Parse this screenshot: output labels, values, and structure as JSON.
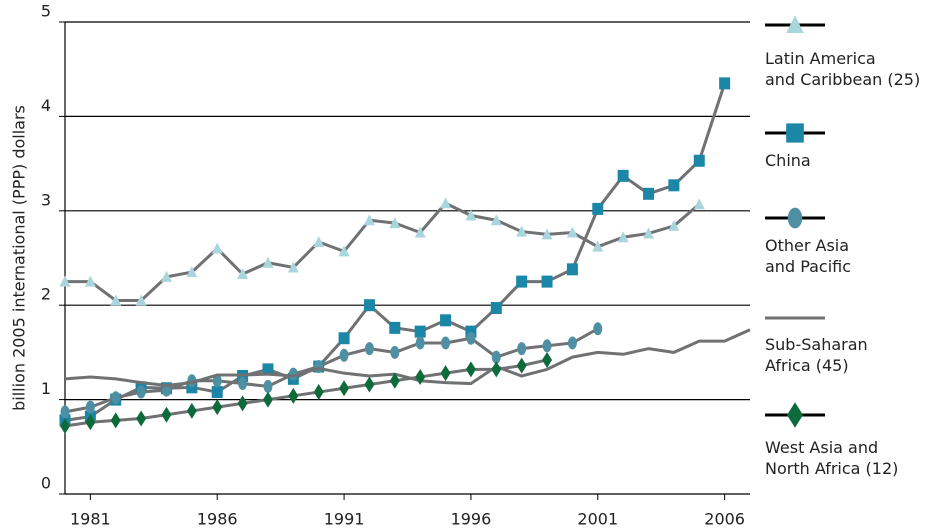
{
  "chart_data": {
    "type": "line",
    "y_label": "billion 2005 international (PPP) dollars",
    "x": [
      1980,
      1981,
      1982,
      1983,
      1984,
      1985,
      1986,
      1987,
      1988,
      1989,
      1990,
      1991,
      1992,
      1993,
      1994,
      1995,
      1996,
      1997,
      1998,
      1999,
      2000,
      2001,
      2002,
      2003,
      2004,
      2005,
      2006,
      2007
    ],
    "xlim": [
      1980,
      2007
    ],
    "xticks": [
      1981,
      1986,
      1991,
      1996,
      2001,
      2006
    ],
    "ylim": [
      0,
      5
    ],
    "yticks": [
      0,
      1,
      2,
      3,
      4,
      5
    ],
    "grid": true,
    "line_color": "#707173",
    "legend": "right",
    "series": [
      {
        "name": "Latin America\nand Caribbean (25)",
        "color": "#a9d6dd",
        "marker": "triangle",
        "values": [
          2.25,
          2.25,
          2.05,
          2.05,
          2.3,
          2.35,
          2.6,
          2.33,
          2.45,
          2.4,
          2.67,
          2.57,
          2.9,
          2.87,
          2.77,
          3.08,
          2.95,
          2.9,
          2.78,
          2.75,
          2.77,
          2.62,
          2.72,
          2.76,
          2.84,
          3.07,
          null,
          null
        ]
      },
      {
        "name": "China",
        "color": "#1b86a6",
        "marker": "square",
        "values": [
          0.78,
          0.82,
          1.0,
          1.13,
          1.12,
          1.13,
          1.08,
          1.25,
          1.32,
          1.22,
          1.35,
          1.65,
          2.0,
          1.76,
          1.72,
          1.84,
          1.72,
          1.97,
          2.25,
          2.25,
          2.38,
          3.02,
          3.37,
          3.18,
          3.27,
          3.53,
          4.35,
          null
        ]
      },
      {
        "name": "Other Asia\nand Pacific",
        "color": "#4f8fa3",
        "marker": "ellipse",
        "values": [
          0.87,
          0.92,
          1.02,
          1.08,
          1.1,
          1.2,
          1.2,
          1.17,
          1.14,
          1.27,
          1.35,
          1.47,
          1.54,
          1.5,
          1.6,
          1.6,
          1.65,
          1.45,
          1.54,
          1.57,
          1.6,
          1.75,
          null,
          null,
          null,
          null,
          null,
          null
        ]
      },
      {
        "name": "Sub-Saharan\nAfrica (45)",
        "color": "#707173",
        "marker": "none",
        "values": [
          1.22,
          1.24,
          1.22,
          1.18,
          1.15,
          1.18,
          1.26,
          1.26,
          1.27,
          1.25,
          1.33,
          1.28,
          1.25,
          1.27,
          1.2,
          1.18,
          1.17,
          1.35,
          1.25,
          1.32,
          1.45,
          1.5,
          1.48,
          1.54,
          1.5,
          1.62,
          1.62,
          1.74
        ]
      },
      {
        "name": "West Asia and\nNorth Africa (12)",
        "color": "#0d6b3b",
        "marker": "diamond",
        "values": [
          0.72,
          0.76,
          0.78,
          0.8,
          0.84,
          0.88,
          0.92,
          0.96,
          1.0,
          1.04,
          1.08,
          1.12,
          1.16,
          1.2,
          1.24,
          1.28,
          1.32,
          1.32,
          1.36,
          1.42,
          null,
          null,
          null,
          null,
          null,
          null,
          null,
          null
        ]
      }
    ]
  }
}
